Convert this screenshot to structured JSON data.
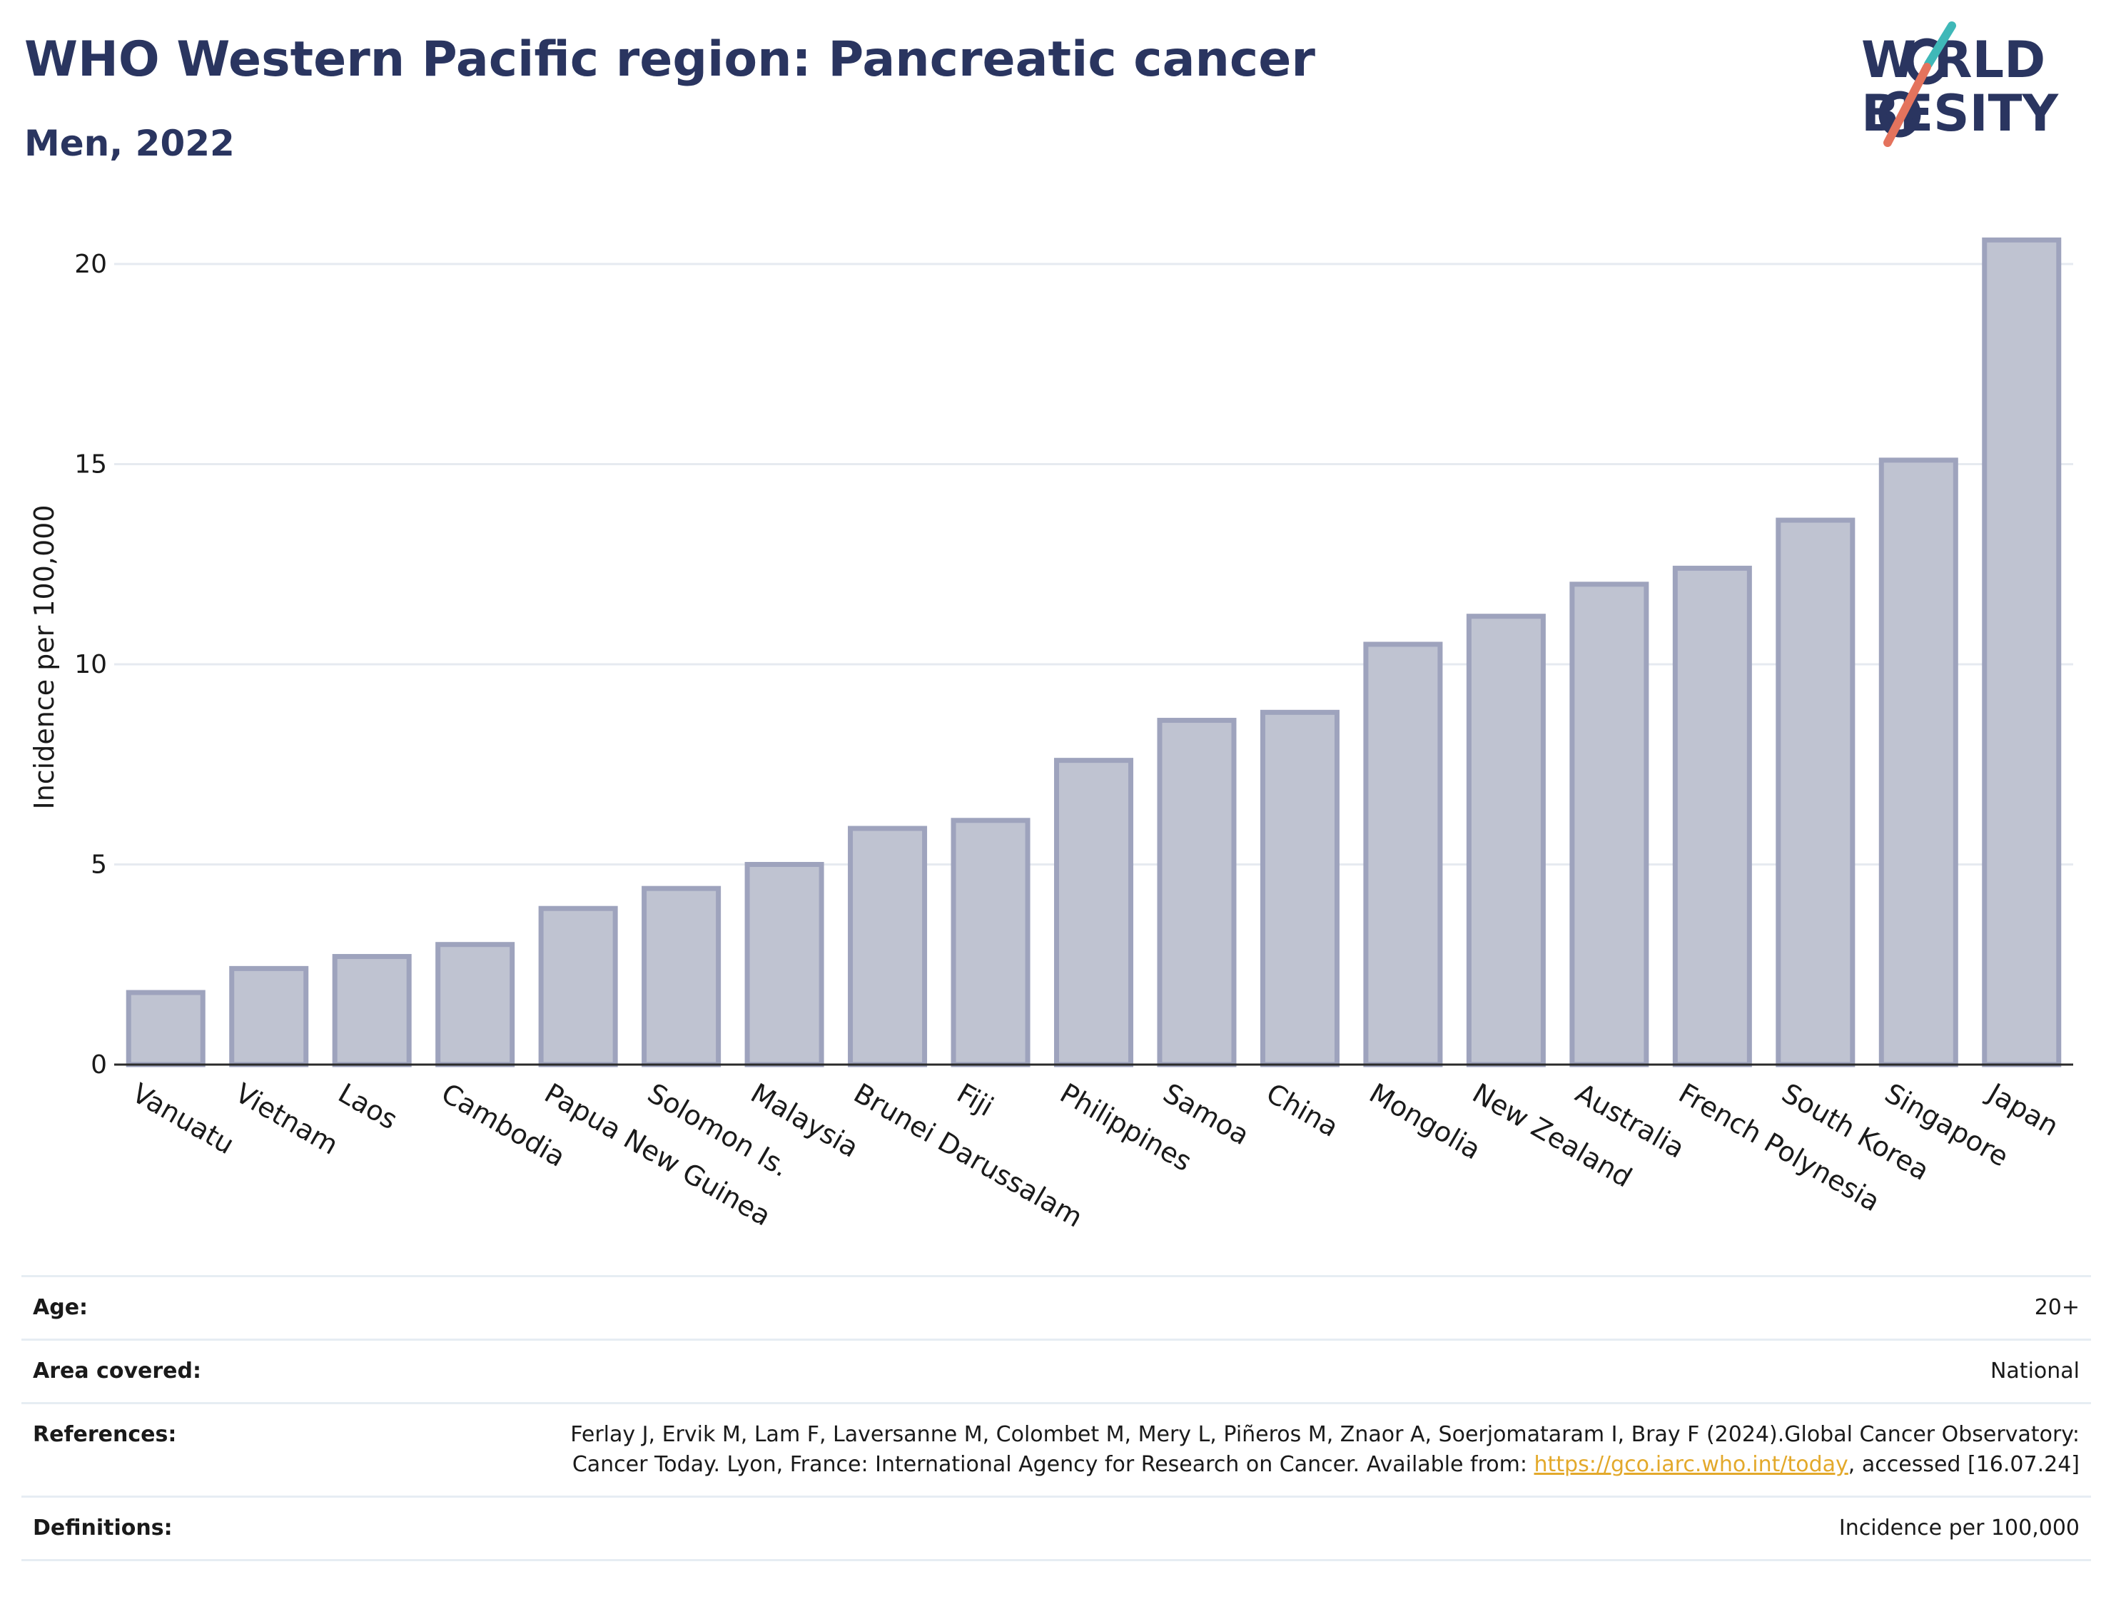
{
  "header": {
    "title": "WHO Western Pacific region: Pancreatic cancer",
    "subtitle": "Men, 2022"
  },
  "logo": {
    "line1": "W  RLD",
    "line2": "  BESITY",
    "accent_teal": "#3fb8b8",
    "accent_coral": "#e4735d",
    "text_color": "#2a3560"
  },
  "chart_data": {
    "type": "bar",
    "title": "WHO Western Pacific region: Pancreatic cancer",
    "subtitle": "Men, 2022",
    "ylabel": "Incidence per 100,000",
    "xlabel": "",
    "ylim": [
      0,
      21
    ],
    "yticks": [
      0,
      5,
      10,
      15,
      20
    ],
    "grid": true,
    "bar_fill": "#bfc3d1",
    "bar_stroke": "#9ea3bd",
    "categories": [
      "Vanuatu",
      "Vietnam",
      "Laos",
      "Cambodia",
      "Papua New Guinea",
      "Solomon Is.",
      "Malaysia",
      "Brunei Darussalam",
      "Fiji",
      "Philippines",
      "Samoa",
      "China",
      "Mongolia",
      "New Zealand",
      "Australia",
      "French Polynesia",
      "South Korea",
      "Singapore",
      "Japan"
    ],
    "values": [
      1.8,
      2.4,
      2.7,
      3.0,
      3.9,
      4.4,
      5.0,
      5.9,
      6.1,
      7.6,
      8.6,
      8.8,
      10.5,
      11.2,
      12.0,
      12.4,
      13.6,
      15.1,
      20.6
    ]
  },
  "meta": {
    "age_label": "Age:",
    "age_value": "20+",
    "area_label": "Area covered:",
    "area_value": "National",
    "references_label": "References:",
    "references_text_before": "Ferlay J, Ervik M, Lam F, Laversanne M, Colombet M, Mery L, Piñeros M, Znaor A, Soerjomataram I, Bray F (2024).Global Cancer Observatory: Cancer Today. Lyon, France: International Agency for Research on Cancer. Available from: ",
    "references_link": "https://gco.iarc.who.int/today",
    "references_text_after": ", accessed [16.07.24]",
    "definitions_label": "Definitions:",
    "definitions_value": "Incidence per 100,000"
  }
}
